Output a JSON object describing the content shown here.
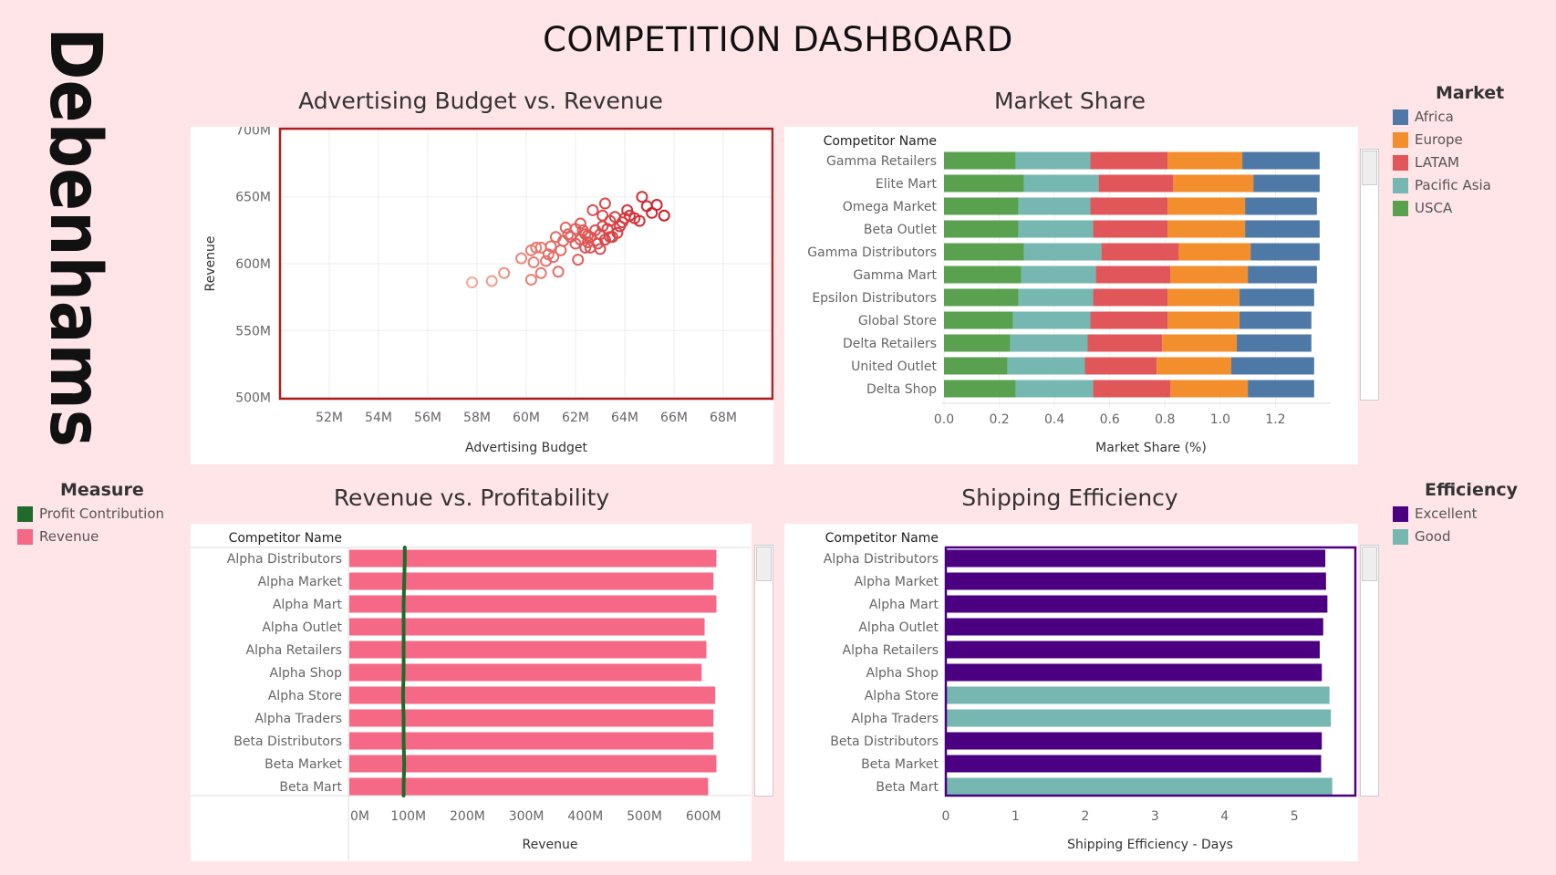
{
  "dashboard": {
    "title": "COMPETITION DASHBOARD",
    "logo": "Debenhams"
  },
  "colors": {
    "Africa": "#4e79a7",
    "Europe": "#f28e2b",
    "LATAM": "#e15759",
    "Pacific Asia": "#76b7b2",
    "USCA": "#59a14f",
    "Profit Contribution": "#1e6b2a",
    "Revenue": "#f56886",
    "Excellent": "#4b0082",
    "Good": "#76b7b2"
  },
  "legends": {
    "market": {
      "title": "Market",
      "items": [
        "Africa",
        "Europe",
        "LATAM",
        "Pacific Asia",
        "USCA"
      ]
    },
    "measure": {
      "title": "Measure",
      "items": [
        "Profit Contribution",
        "Revenue"
      ]
    },
    "efficiency": {
      "title": "Efficiency",
      "items": [
        "Excellent",
        "Good"
      ]
    }
  },
  "chart_data": [
    {
      "id": "ad_vs_revenue",
      "type": "scatter",
      "title": "Advertising Budget vs. Revenue",
      "xlabel": "Advertising Budget",
      "ylabel": "Revenue",
      "xlim": [
        50,
        70
      ],
      "ylim": [
        499,
        701
      ],
      "xticks": [
        52,
        54,
        56,
        58,
        60,
        62,
        64,
        66,
        68
      ],
      "yticks": [
        500,
        550,
        600,
        650,
        700
      ],
      "xtick_labels": [
        "52M",
        "54M",
        "56M",
        "58M",
        "60M",
        "62M",
        "64M",
        "66M",
        "68M"
      ],
      "ytick_labels": [
        "500M",
        "550M",
        "600M",
        "650M",
        "700M"
      ],
      "points": [
        [
          57.8,
          586
        ],
        [
          58.6,
          587
        ],
        [
          59.1,
          593
        ],
        [
          59.8,
          604
        ],
        [
          60.2,
          610
        ],
        [
          60.4,
          612
        ],
        [
          60.6,
          612
        ],
        [
          60.3,
          601
        ],
        [
          60.2,
          588
        ],
        [
          60.6,
          593
        ],
        [
          60.8,
          602
        ],
        [
          60.9,
          607
        ],
        [
          61.0,
          613
        ],
        [
          61.1,
          605
        ],
        [
          61.2,
          620
        ],
        [
          61.3,
          594
        ],
        [
          61.4,
          610
        ],
        [
          61.5,
          617
        ],
        [
          61.6,
          627
        ],
        [
          61.8,
          620
        ],
        [
          62.0,
          626
        ],
        [
          62.0,
          615
        ],
        [
          62.1,
          603
        ],
        [
          62.2,
          630
        ],
        [
          62.2,
          618
        ],
        [
          62.4,
          622
        ],
        [
          62.4,
          612
        ],
        [
          62.5,
          616
        ],
        [
          62.6,
          620
        ],
        [
          62.7,
          640
        ],
        [
          62.8,
          625
        ],
        [
          62.9,
          615
        ],
        [
          63.0,
          622
        ],
        [
          63.0,
          611
        ],
        [
          63.1,
          628
        ],
        [
          63.1,
          636
        ],
        [
          63.2,
          618
        ],
        [
          63.2,
          645
        ],
        [
          63.3,
          626
        ],
        [
          63.4,
          632
        ],
        [
          63.5,
          620
        ],
        [
          63.6,
          635
        ],
        [
          63.7,
          623
        ],
        [
          63.8,
          628
        ],
        [
          64.0,
          634
        ],
        [
          64.1,
          640
        ],
        [
          64.2,
          636
        ],
        [
          64.4,
          634
        ],
        [
          64.6,
          632
        ],
        [
          64.7,
          650
        ],
        [
          64.9,
          643
        ],
        [
          65.1,
          638
        ],
        [
          65.3,
          644
        ],
        [
          65.6,
          636
        ],
        [
          62.5,
          621
        ],
        [
          62.3,
          625
        ],
        [
          62.6,
          612
        ],
        [
          63.4,
          620
        ],
        [
          63.9,
          631
        ],
        [
          61.7,
          622
        ]
      ]
    },
    {
      "id": "market_share",
      "type": "bar",
      "title": "Market Share",
      "xlabel": "Market Share (%)",
      "category_header": "Competitor Name",
      "xlim": [
        0,
        1.4
      ],
      "xticks": [
        0.0,
        0.2,
        0.4,
        0.6,
        0.8,
        1.0,
        1.2
      ],
      "xtick_labels": [
        "0.0",
        "0.2",
        "0.4",
        "0.6",
        "0.8",
        "1.0",
        "1.2"
      ],
      "categories": [
        "Gamma Retailers",
        "Elite Mart",
        "Omega Market",
        "Beta Outlet",
        "Gamma Distributors",
        "Gamma Mart",
        "Epsilon Distributors",
        "Global Store",
        "Delta Retailers",
        "United Outlet",
        "Delta Shop"
      ],
      "series": [
        {
          "name": "USCA",
          "values": [
            0.26,
            0.29,
            0.27,
            0.27,
            0.29,
            0.28,
            0.27,
            0.25,
            0.24,
            0.23,
            0.26
          ]
        },
        {
          "name": "Pacific Asia",
          "values": [
            0.27,
            0.27,
            0.26,
            0.27,
            0.28,
            0.27,
            0.27,
            0.28,
            0.28,
            0.28,
            0.28
          ]
        },
        {
          "name": "LATAM",
          "values": [
            0.28,
            0.27,
            0.28,
            0.27,
            0.28,
            0.27,
            0.27,
            0.28,
            0.27,
            0.26,
            0.28
          ]
        },
        {
          "name": "Europe",
          "values": [
            0.27,
            0.29,
            0.28,
            0.28,
            0.26,
            0.28,
            0.26,
            0.26,
            0.27,
            0.27,
            0.28
          ]
        },
        {
          "name": "Africa",
          "values": [
            0.28,
            0.24,
            0.26,
            0.27,
            0.25,
            0.25,
            0.27,
            0.26,
            0.27,
            0.3,
            0.24
          ]
        }
      ]
    },
    {
      "id": "revenue_vs_profitability",
      "type": "bar",
      "title": "Revenue vs. Profitability",
      "xlabel": "Revenue",
      "category_header": "Competitor Name",
      "xlim": [
        0,
        680
      ],
      "xticks": [
        0,
        100,
        200,
        300,
        400,
        500,
        600
      ],
      "xtick_labels": [
        "0M",
        "100M",
        "200M",
        "300M",
        "400M",
        "500M",
        "600M"
      ],
      "categories": [
        "Alpha Distributors",
        "Alpha Market",
        "Alpha Mart",
        "Alpha Outlet",
        "Alpha Retailers",
        "Alpha Shop",
        "Alpha Store",
        "Alpha Traders",
        "Beta Distributors",
        "Beta Market",
        "Beta Mart"
      ],
      "series": [
        {
          "name": "Revenue",
          "values": [
            622,
            617,
            622,
            602,
            605,
            597,
            620,
            617,
            617,
            622,
            608
          ]
        },
        {
          "name": "Profit Contribution",
          "values": [
            94,
            93,
            92,
            92,
            92,
            92,
            91,
            92,
            92,
            93,
            92
          ]
        }
      ]
    },
    {
      "id": "shipping_efficiency",
      "type": "bar",
      "title": "Shipping Efficiency",
      "xlabel": "Shipping Efficiency - Days",
      "category_header": "Competitor Name",
      "xlim": [
        0,
        5.9
      ],
      "xticks": [
        0,
        1,
        2,
        3,
        4,
        5
      ],
      "xtick_labels": [
        "0",
        "1",
        "2",
        "3",
        "4",
        "5"
      ],
      "categories": [
        "Alpha Distributors",
        "Alpha Market",
        "Alpha Mart",
        "Alpha Outlet",
        "Alpha Retailers",
        "Alpha Shop",
        "Alpha Store",
        "Alpha Traders",
        "Beta Distributors",
        "Beta Market",
        "Beta Mart"
      ],
      "values": [
        5.43,
        5.44,
        5.46,
        5.4,
        5.35,
        5.38,
        5.49,
        5.51,
        5.38,
        5.37,
        5.53
      ],
      "efficiency": [
        "Excellent",
        "Excellent",
        "Excellent",
        "Excellent",
        "Excellent",
        "Excellent",
        "Good",
        "Good",
        "Excellent",
        "Excellent",
        "Good"
      ]
    }
  ]
}
